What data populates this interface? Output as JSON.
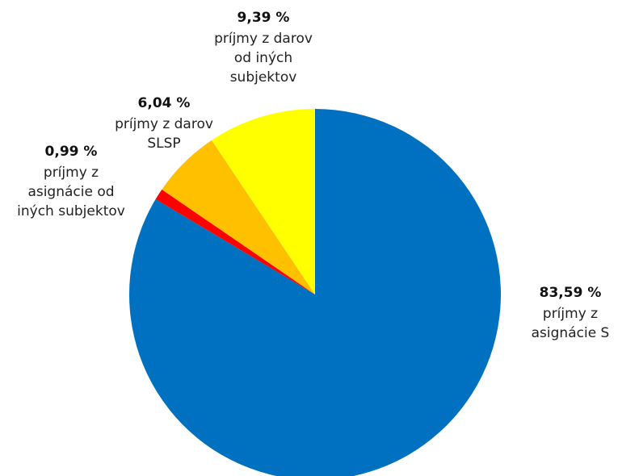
{
  "chart_data": {
    "type": "pie",
    "slices": [
      {
        "percent_label": "83,59 %",
        "name_lines": [
          "príjmy z",
          "asignácie S"
        ],
        "value": 83.59,
        "color": "#0070C0"
      },
      {
        "percent_label": "0,99 %",
        "name_lines": [
          "príjmy z",
          "asignácie od",
          "iných subjektov"
        ],
        "value": 0.99,
        "color": "#FF0000"
      },
      {
        "percent_label": "6,04 %",
        "name_lines": [
          "príjmy z darov",
          "SLSP"
        ],
        "value": 6.04,
        "color": "#FFC000"
      },
      {
        "percent_label": "9,39 %",
        "name_lines": [
          "príjmy z darov",
          "od iných",
          "subjektov"
        ],
        "value": 9.39,
        "color": "#FFFF00"
      }
    ],
    "start_angle": "12 o'clock",
    "direction": "clockwise"
  }
}
